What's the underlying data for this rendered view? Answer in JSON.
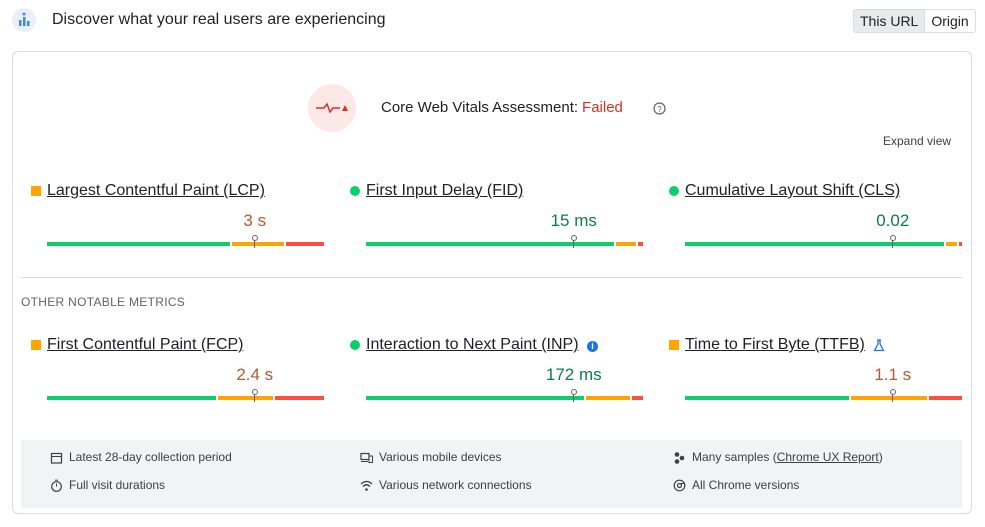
{
  "header": {
    "title": "Discover what your real users are experiencing",
    "tabs": [
      "This URL",
      "Origin"
    ],
    "active_tab": 0
  },
  "assessment": {
    "label": "Core Web Vitals Assessment:",
    "result": "Failed"
  },
  "expand": "Expand view",
  "marker_percentile": 75,
  "segment_colors": [
    "#0cce6b",
    "#ffa400",
    "#ff4e42"
  ],
  "status_colors": {
    "good": "#0cce6b",
    "average": "#ffa400",
    "poor": "#ff4e42"
  },
  "core_metrics": [
    {
      "name": "Largest Contentful Paint (LCP)",
      "value": "3 s",
      "status": "average",
      "distribution": [
        67,
        19,
        14
      ]
    },
    {
      "name": "First Input Delay (FID)",
      "value": "15 ms",
      "status": "good",
      "distribution": [
        91,
        7,
        2
      ]
    },
    {
      "name": "Cumulative Layout Shift (CLS)",
      "value": "0.02",
      "status": "good",
      "distribution": [
        95,
        4,
        1
      ]
    }
  ],
  "other_heading": "OTHER NOTABLE METRICS",
  "other_metrics": [
    {
      "name": "First Contentful Paint (FCP)",
      "value": "2.4 s",
      "status": "average",
      "distribution": [
        62,
        20,
        18
      ]
    },
    {
      "name": "Interaction to Next Paint (INP)",
      "value": "172 ms",
      "status": "good",
      "distribution": [
        80,
        16,
        4
      ]
    },
    {
      "name": "Time to First Byte (TTFB)",
      "value": "1.1 s",
      "status": "average",
      "distribution": [
        60,
        28,
        12
      ]
    }
  ],
  "footer": {
    "period": "Latest 28-day collection period",
    "durations": "Full visit durations",
    "devices": "Various mobile devices",
    "connections": "Various network connections",
    "samples": {
      "prefix": "Many samples (",
      "link": "Chrome UX Report",
      "suffix": ")"
    },
    "versions": "All Chrome versions"
  }
}
